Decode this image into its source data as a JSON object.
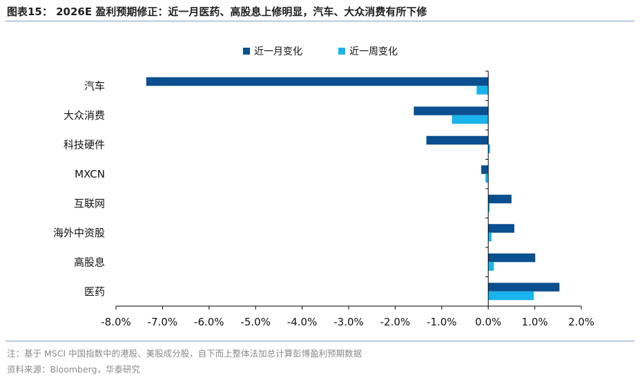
{
  "header": {
    "title": "图表15： 2026E 盈利预期修正：近一月医药、高股息上修明显，汽车、大众消费有所下修"
  },
  "footer": {
    "note": "注：基于 MSCI 中国指数中的港股、美股成分股，自下而上整体法加总计算彭博盈利预期数据",
    "source": "资料来源：Bloomberg，华泰研究"
  },
  "colors": {
    "month": "#0a4f8f",
    "week": "#1ab4ec",
    "axis": "#000000",
    "rule": "#7f9bbd"
  },
  "chart_data": {
    "type": "bar",
    "orientation": "horizontal",
    "categories": [
      "汽车",
      "大众消费",
      "科技硬件",
      "MXCN",
      "互联网",
      "海外中资股",
      "高股息",
      "医药"
    ],
    "series": [
      {
        "name": "近一月变化",
        "values": [
          -7.35,
          -1.6,
          -1.33,
          -0.15,
          0.5,
          0.56,
          1.01,
          1.53
        ]
      },
      {
        "name": "近一周变化",
        "values": [
          -0.25,
          -0.78,
          0.04,
          -0.06,
          0.03,
          0.07,
          0.12,
          0.98
        ]
      }
    ],
    "xlim": [
      -8.0,
      2.0
    ],
    "xticks": [
      "-8.0%",
      "-7.0%",
      "-6.0%",
      "-5.0%",
      "-4.0%",
      "-3.0%",
      "-2.0%",
      "-1.0%",
      "0.0%",
      "1.0%",
      "2.0%"
    ],
    "unit": "%",
    "legend": "top-center",
    "grid": false
  }
}
